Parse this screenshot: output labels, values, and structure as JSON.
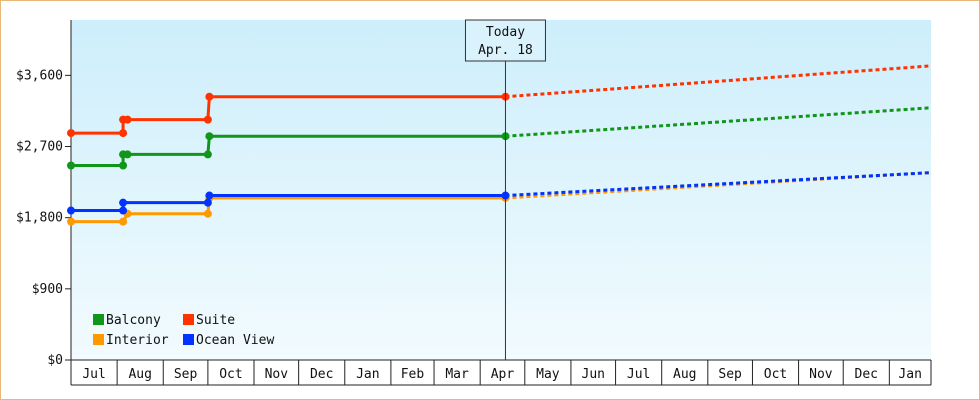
{
  "chart_data": {
    "type": "line",
    "y_ticks": [
      "$0",
      "$900",
      "$1,800",
      "$2,700",
      "$3,600"
    ],
    "ylim": [
      0,
      4300
    ],
    "month_labels": [
      "Jul",
      "Aug",
      "Sep",
      "Oct",
      "Nov",
      "Dec",
      "Jan",
      "Feb",
      "Mar",
      "Apr",
      "May",
      "Jun",
      "Jul",
      "Aug",
      "Sep",
      "Oct",
      "Nov",
      "Dec",
      "Jan"
    ],
    "today": {
      "title": "Today",
      "date": "Apr. 18"
    },
    "legend_position": "bottom-left",
    "grid": false,
    "series": [
      {
        "name": "Balcony",
        "color": "#109618",
        "points": [
          [
            "Jul 1",
            2460
          ],
          [
            "Aug 5",
            2460
          ],
          [
            "Aug 5",
            2600
          ],
          [
            "Aug 8",
            2600
          ],
          [
            "Oct 1",
            2600
          ],
          [
            "Oct 2",
            2830
          ],
          [
            "Apr 18",
            2830
          ]
        ],
        "forecast": [
          [
            "Apr 18",
            2830
          ],
          [
            "Jan 31",
            3190
          ]
        ]
      },
      {
        "name": "Suite",
        "color": "#ff3300",
        "points": [
          [
            "Jul 1",
            2870
          ],
          [
            "Aug 5",
            2870
          ],
          [
            "Aug 5",
            3040
          ],
          [
            "Aug 8",
            3040
          ],
          [
            "Oct 1",
            3040
          ],
          [
            "Oct 2",
            3330
          ],
          [
            "Apr 18",
            3330
          ]
        ],
        "forecast": [
          [
            "Apr 18",
            3330
          ],
          [
            "Jan 31",
            3720
          ]
        ]
      },
      {
        "name": "Interior",
        "color": "#ff9900",
        "points": [
          [
            "Jul 1",
            1750
          ],
          [
            "Aug 5",
            1750
          ],
          [
            "Aug 8",
            1850
          ],
          [
            "Oct 1",
            1850
          ],
          [
            "Oct 2",
            2050
          ],
          [
            "Apr 18",
            2050
          ]
        ],
        "forecast": [
          [
            "Apr 18",
            2050
          ],
          [
            "Jan 31",
            2370
          ]
        ]
      },
      {
        "name": "Ocean View",
        "color": "#0033ff",
        "points": [
          [
            "Jul 1",
            1890
          ],
          [
            "Aug 5",
            1890
          ],
          [
            "Aug 5",
            1990
          ],
          [
            "Oct 1",
            1990
          ],
          [
            "Oct 2",
            2080
          ],
          [
            "Apr 18",
            2080
          ]
        ],
        "forecast": [
          [
            "Apr 18",
            2080
          ],
          [
            "Jan 31",
            2370
          ]
        ]
      }
    ]
  }
}
